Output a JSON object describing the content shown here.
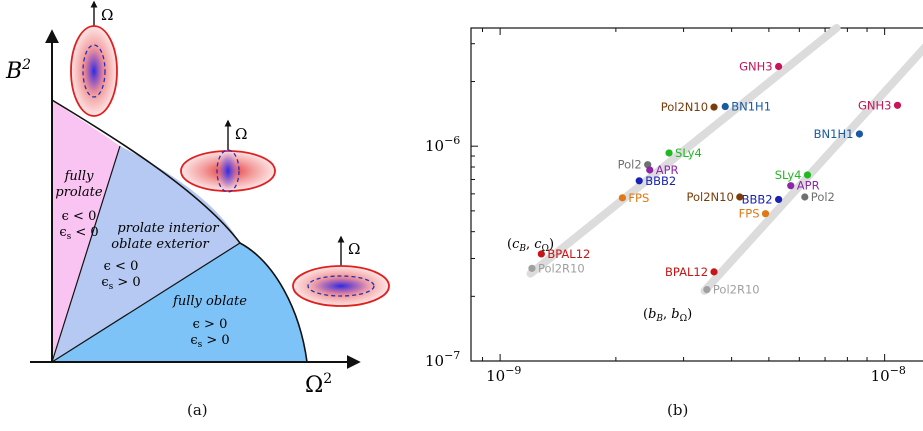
{
  "panel_a": {
    "caption": "(a)",
    "y_axis_label_base": "B",
    "y_axis_label_exp": "2",
    "x_axis_label_base": "Ω",
    "x_axis_label_exp": "2",
    "omega_label": "Ω",
    "region_prolate": {
      "title_line1": "fully",
      "title_line2": "prolate",
      "eps": "ϵ < 0",
      "eps_s": "ϵ",
      "eps_s_sub": "s",
      "eps_s_rel": " < 0"
    },
    "region_mixed": {
      "title_line1": "prolate interior",
      "title_line2": "oblate exterior",
      "eps": "ϵ < 0",
      "eps_s": "ϵ",
      "eps_s_sub": "s",
      "eps_s_rel": " > 0"
    },
    "region_oblate": {
      "title": "fully oblate",
      "eps": "ϵ > 0",
      "eps_s": "ϵ",
      "eps_s_sub": "s",
      "eps_s_rel": " > 0"
    },
    "colors": {
      "prolate_region": "#f9c4f2",
      "mixed_region": "#b5c9f2",
      "oblate_region": "#7ec3f7",
      "ellipse_outline": "#e02020",
      "inner_dash": "#2030c0"
    }
  },
  "chart_data": {
    "type": "scatter",
    "caption": "(b)",
    "x_scale": "log",
    "y_scale": "log",
    "xlim": [
      8.4e-10,
      1.32e-08
    ],
    "ylim": [
      1e-07,
      3.55e-06
    ],
    "x_ticks": [
      {
        "value": 1e-09,
        "mant": "10",
        "exp": "−9"
      },
      {
        "value": 1e-08,
        "mant": "10",
        "exp": "−8"
      }
    ],
    "y_ticks": [
      {
        "value": 1e-07,
        "mant": "10",
        "exp": "−7"
      },
      {
        "value": 1e-06,
        "mant": "10",
        "exp": "−6"
      }
    ],
    "series": [
      {
        "label_parts": [
          "(",
          "c",
          "B",
          ", ",
          "c",
          "Ω",
          ")"
        ],
        "trend_line": [
          [
            1.2e-09,
            2.55e-07
          ],
          [
            7.5e-09,
            3.55e-06
          ]
        ],
        "points": [
          {
            "name": "GNH3",
            "x": 5.3e-09,
            "y": 2.35e-06,
            "color": "#c8145a",
            "side": "left"
          },
          {
            "name": "Pol2N10",
            "x": 3.6e-09,
            "y": 1.52e-06,
            "color": "#7a3c0a",
            "side": "left"
          },
          {
            "name": "BN1H1",
            "x": 3.85e-09,
            "y": 1.53e-06,
            "color": "#1a5aa0",
            "side": "right"
          },
          {
            "name": "SLy4",
            "x": 2.75e-09,
            "y": 9.3e-07,
            "color": "#22b822",
            "side": "right"
          },
          {
            "name": "Pol2",
            "x": 2.42e-09,
            "y": 8.2e-07,
            "color": "#707070",
            "side": "left"
          },
          {
            "name": "APR",
            "x": 2.45e-09,
            "y": 7.75e-07,
            "color": "#8c28a8",
            "side": "right"
          },
          {
            "name": "BBB2",
            "x": 2.3e-09,
            "y": 6.9e-07,
            "color": "#1a22b4",
            "side": "right"
          },
          {
            "name": "FPS",
            "x": 2.08e-09,
            "y": 5.75e-07,
            "color": "#e07814",
            "side": "right"
          },
          {
            "name": "BPAL12",
            "x": 1.28e-09,
            "y": 3.15e-07,
            "color": "#c81414",
            "side": "right"
          },
          {
            "name": "Pol2R10",
            "x": 1.21e-09,
            "y": 2.7e-07,
            "color": "#a0a0a0",
            "side": "right"
          }
        ]
      },
      {
        "label_parts": [
          "(",
          "b",
          "B",
          ", ",
          "b",
          "Ω",
          ")"
        ],
        "trend_line": [
          [
            3.4e-09,
            2.12e-07
          ],
          [
            1.32e-08,
            3.1e-06
          ]
        ],
        "points": [
          {
            "name": "GNH3",
            "x": 1.08e-08,
            "y": 1.55e-06,
            "color": "#c8145a",
            "side": "left"
          },
          {
            "name": "BN1H1",
            "x": 8.6e-09,
            "y": 1.14e-06,
            "color": "#1a5aa0",
            "side": "left"
          },
          {
            "name": "SLy4",
            "x": 6.3e-09,
            "y": 7.35e-07,
            "color": "#22b822",
            "side": "left"
          },
          {
            "name": "APR",
            "x": 5.7e-09,
            "y": 6.55e-07,
            "color": "#8c28a8",
            "side": "right"
          },
          {
            "name": "BBB2",
            "x": 5.3e-09,
            "y": 5.65e-07,
            "color": "#1a22b4",
            "side": "left"
          },
          {
            "name": "Pol2",
            "x": 6.2e-09,
            "y": 5.8e-07,
            "color": "#707070",
            "side": "right"
          },
          {
            "name": "Pol2N10",
            "x": 4.2e-09,
            "y": 5.8e-07,
            "color": "#7a3c0a",
            "side": "left"
          },
          {
            "name": "FPS",
            "x": 4.9e-09,
            "y": 4.85e-07,
            "color": "#e07814",
            "side": "left"
          },
          {
            "name": "BPAL12",
            "x": 3.6e-09,
            "y": 2.6e-07,
            "color": "#c81414",
            "side": "left"
          },
          {
            "name": "Pol2R10",
            "x": 3.45e-09,
            "y": 2.15e-07,
            "color": "#a0a0a0",
            "side": "right"
          }
        ]
      }
    ]
  }
}
